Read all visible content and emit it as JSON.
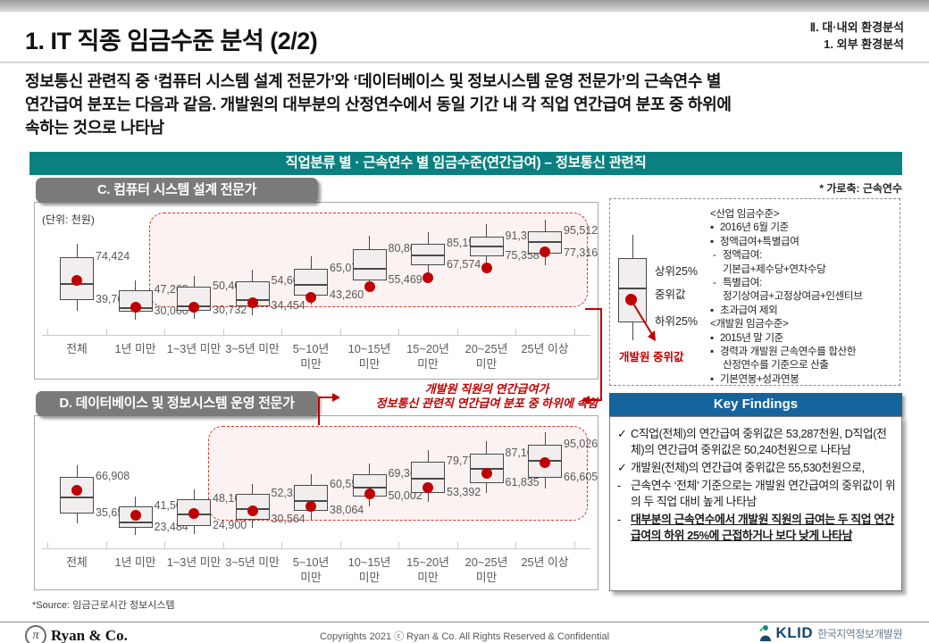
{
  "slide": {
    "title": "1. IT 직종 임금수준 분석 (2/2)",
    "breadcrumb": [
      "Ⅱ. 대·내외 환경분석",
      "1. 외부 환경분석"
    ],
    "intro": "정보통신 관련직 중 ‘컴퓨터 시스템 설계 전문가’와 ‘데이터베이스 및 정보시스템 운영 전문가’의 근속연수 별\n연간급여 분포는 다음과 같음. 개발원의 대부분의 산정연수에서 동일 기간 내 각 직업 연간급여 분포 중 하위에\n속하는 것으로 나타남"
  },
  "banner": {
    "text": "직업분류 별 · 근속연수 별 임금수준(연간급여) – 정보통신 관련직"
  },
  "axis_note": "* 가로축: 근속연수",
  "annotation": {
    "text": "개발원 직원의 연간급여가\n정보통신 관련직 연간급여 분포 중 하위에 속함"
  },
  "chart_data": [
    {
      "type": "boxplot",
      "label": "C. 컴퓨터 시스템 설계 전문가",
      "unit_note": "(단위: 천원)",
      "x_axis_meaning": "근속연수",
      "categories": [
        "전체",
        "1년 미만",
        "1~3년 미만",
        "3~5년 미만",
        "5~10년\n미만",
        "10~15년\n미만",
        "15~20년\n미만",
        "20~25년\n미만",
        "25년 이상"
      ],
      "ylim": [
        20000,
        110000
      ],
      "highlight_from_index": 2,
      "boxes": [
        {
          "q1": 39765,
          "q3": 74424,
          "median_est": 53287,
          "whisker_low_est": 31000,
          "whisker_high_est": 85000,
          "dev_dot_est": 55530
        },
        {
          "q1": 30000,
          "q3": 47268,
          "median_est": 34000,
          "whisker_low_est": 23500,
          "whisker_high_est": 55500,
          "dev_dot_est": 33500
        },
        {
          "q1": 30732,
          "q3": 50400,
          "median_est": 35500,
          "whisker_low_est": 24500,
          "whisker_high_est": 59000,
          "dev_dot_est": 33800
        },
        {
          "q1": 34454,
          "q3": 54600,
          "median_est": 40500,
          "whisker_low_est": 27500,
          "whisker_high_est": 64000,
          "dev_dot_est": 37500
        },
        {
          "q1": 43260,
          "q3": 65076,
          "median_est": 52500,
          "whisker_low_est": 36000,
          "whisker_high_est": 75500,
          "dev_dot_est": 41500
        },
        {
          "q1": 55469,
          "q3": 80805,
          "median_est": 66000,
          "whisker_low_est": 47000,
          "whisker_high_est": 92000,
          "dev_dot_est": 50500
        },
        {
          "q1": 67574,
          "q3": 85156,
          "median_est": 76500,
          "whisker_low_est": 59000,
          "whisker_high_est": 94500,
          "dev_dot_est": 57500
        },
        {
          "q1": 75358,
          "q3": 91357,
          "median_est": 84000,
          "whisker_low_est": 67000,
          "whisker_high_est": 101000,
          "dev_dot_est": 66000
        },
        {
          "q1": 77316,
          "q3": 95512,
          "median_est": 87500,
          "whisker_low_est": 68000,
          "whisker_high_est": 105000,
          "dev_dot_est": 78500
        }
      ]
    },
    {
      "type": "boxplot",
      "label": "D. 데이터베이스 및 정보시스템 운영 전문가",
      "unit_note": "",
      "x_axis_meaning": "근속연수",
      "categories": [
        "전체",
        "1년 미만",
        "1~3년 미만",
        "3~5년 미만",
        "5~10년\n미만",
        "10~15년\n미만",
        "15~20년\n미만",
        "20~25년\n미만",
        "25년 이상"
      ],
      "ylim": [
        15000,
        110000
      ],
      "highlight_from_index": 3,
      "boxes": [
        {
          "q1": 35652,
          "q3": 66908,
          "median_est": 50240,
          "whisker_low_est": 27000,
          "whisker_high_est": 77000,
          "dev_dot_est": 55530
        },
        {
          "q1": 23484,
          "q3": 41508,
          "median_est": 28500,
          "whisker_low_est": 17500,
          "whisker_high_est": 50000,
          "dev_dot_est": 33800
        },
        {
          "q1": 24900,
          "q3": 48160,
          "median_est": 36000,
          "whisker_low_est": 18000,
          "whisker_high_est": 56500,
          "dev_dot_est": 35800
        },
        {
          "q1": 30564,
          "q3": 52320,
          "median_est": 40000,
          "whisker_low_est": 23500,
          "whisker_high_est": 61000,
          "dev_dot_est": 38000
        },
        {
          "q1": 38064,
          "q3": 60551,
          "median_est": 47500,
          "whisker_low_est": 30500,
          "whisker_high_est": 69500,
          "dev_dot_est": 42000
        },
        {
          "q1": 50002,
          "q3": 69364,
          "median_est": 58500,
          "whisker_low_est": 42000,
          "whisker_high_est": 78500,
          "dev_dot_est": 52500
        },
        {
          "q1": 53392,
          "q3": 79772,
          "median_est": 66000,
          "whisker_low_est": 45500,
          "whisker_high_est": 90000,
          "dev_dot_est": 58000
        },
        {
          "q1": 61835,
          "q3": 87102,
          "median_est": 74500,
          "whisker_low_est": 53500,
          "whisker_high_est": 97500,
          "dev_dot_est": 70000
        },
        {
          "q1": 66605,
          "q3": 95026,
          "median_est": 81500,
          "whisker_low_est": 57500,
          "whisker_high_est": 105500,
          "dev_dot_est": 79500
        }
      ]
    }
  ],
  "legend": {
    "upper_label": "상위25%",
    "median_label": "중위값",
    "lower_label": "하위25%",
    "dot_label": "개발원 중위값",
    "notes": [
      {
        "marker": "",
        "indent": 0,
        "text": "<산업 임금수준>"
      },
      {
        "marker": "▪",
        "indent": 0,
        "text": "2016년 6월 기준"
      },
      {
        "marker": "▪",
        "indent": 0,
        "text": "정액급여+특별급여"
      },
      {
        "marker": "-",
        "indent": 1,
        "text": "정액급여:"
      },
      {
        "marker": "",
        "indent": 2,
        "text": "기본급+제수당+연차수당"
      },
      {
        "marker": "-",
        "indent": 1,
        "text": "특별급여:"
      },
      {
        "marker": "",
        "indent": 2,
        "text": "정기상여금+고정상여금+인센티브"
      },
      {
        "marker": "▪",
        "indent": 0,
        "text": "초과급여 제외"
      },
      {
        "marker": "",
        "indent": 0,
        "text": "<개발원 임금수준>"
      },
      {
        "marker": "▪",
        "indent": 0,
        "text": "2015년 말 기준"
      },
      {
        "marker": "▪",
        "indent": 0,
        "text": "경력과 개발원 근속연수를 합산한"
      },
      {
        "marker": "",
        "indent": 2,
        "text": "산정연수를 기준으로 산출"
      },
      {
        "marker": "▪",
        "indent": 0,
        "text": "기본연봉+성과연봉"
      }
    ]
  },
  "key_findings": {
    "title": "Key Findings",
    "items": [
      {
        "marker": "✓",
        "emphasis": false,
        "text": "C직업(전체)의 연간급여 중위값은 53,287천원, D직업(전체)의 연간급여 중위값은 50,240천원으로 나타남"
      },
      {
        "marker": "✓",
        "emphasis": false,
        "text": "개발원(전체)의 연간급여 중위값은 55,530천원으로,"
      },
      {
        "marker": "-",
        "emphasis": false,
        "text": "근속연수 ‘전체’ 기준으로는 개발원 연간급여의 중위값이 위의 두 직업 대비 높게 나타남"
      },
      {
        "marker": "-",
        "emphasis": true,
        "text": "대부분의 근속연수에서 개발원 직원의 급여는 두 직업 연간급여의 하위 25%에 근접하거나 보다 낮게 나타남"
      }
    ]
  },
  "source_note": "*Source: 임금근로시간 정보시스템",
  "footer": {
    "left_logo_symbol": "π",
    "left_logo_text": "Ryan & Co.",
    "copyright": "Copyrights 2021 ⓒ Ryan & Co. All Rights Reserved & Confidential",
    "right_logo_text": "KLID",
    "right_logo_subtext": "한국지역정보개발원"
  },
  "colors": {
    "banner_teal": "#0a8180",
    "tab_gray": "#7a7a7a",
    "key_findings_blue": "#16649e",
    "accent_red": "#c00000",
    "box_fill": "#f1eeed",
    "highlight_fill": "#fbeceb",
    "label_gray": "#595959"
  }
}
